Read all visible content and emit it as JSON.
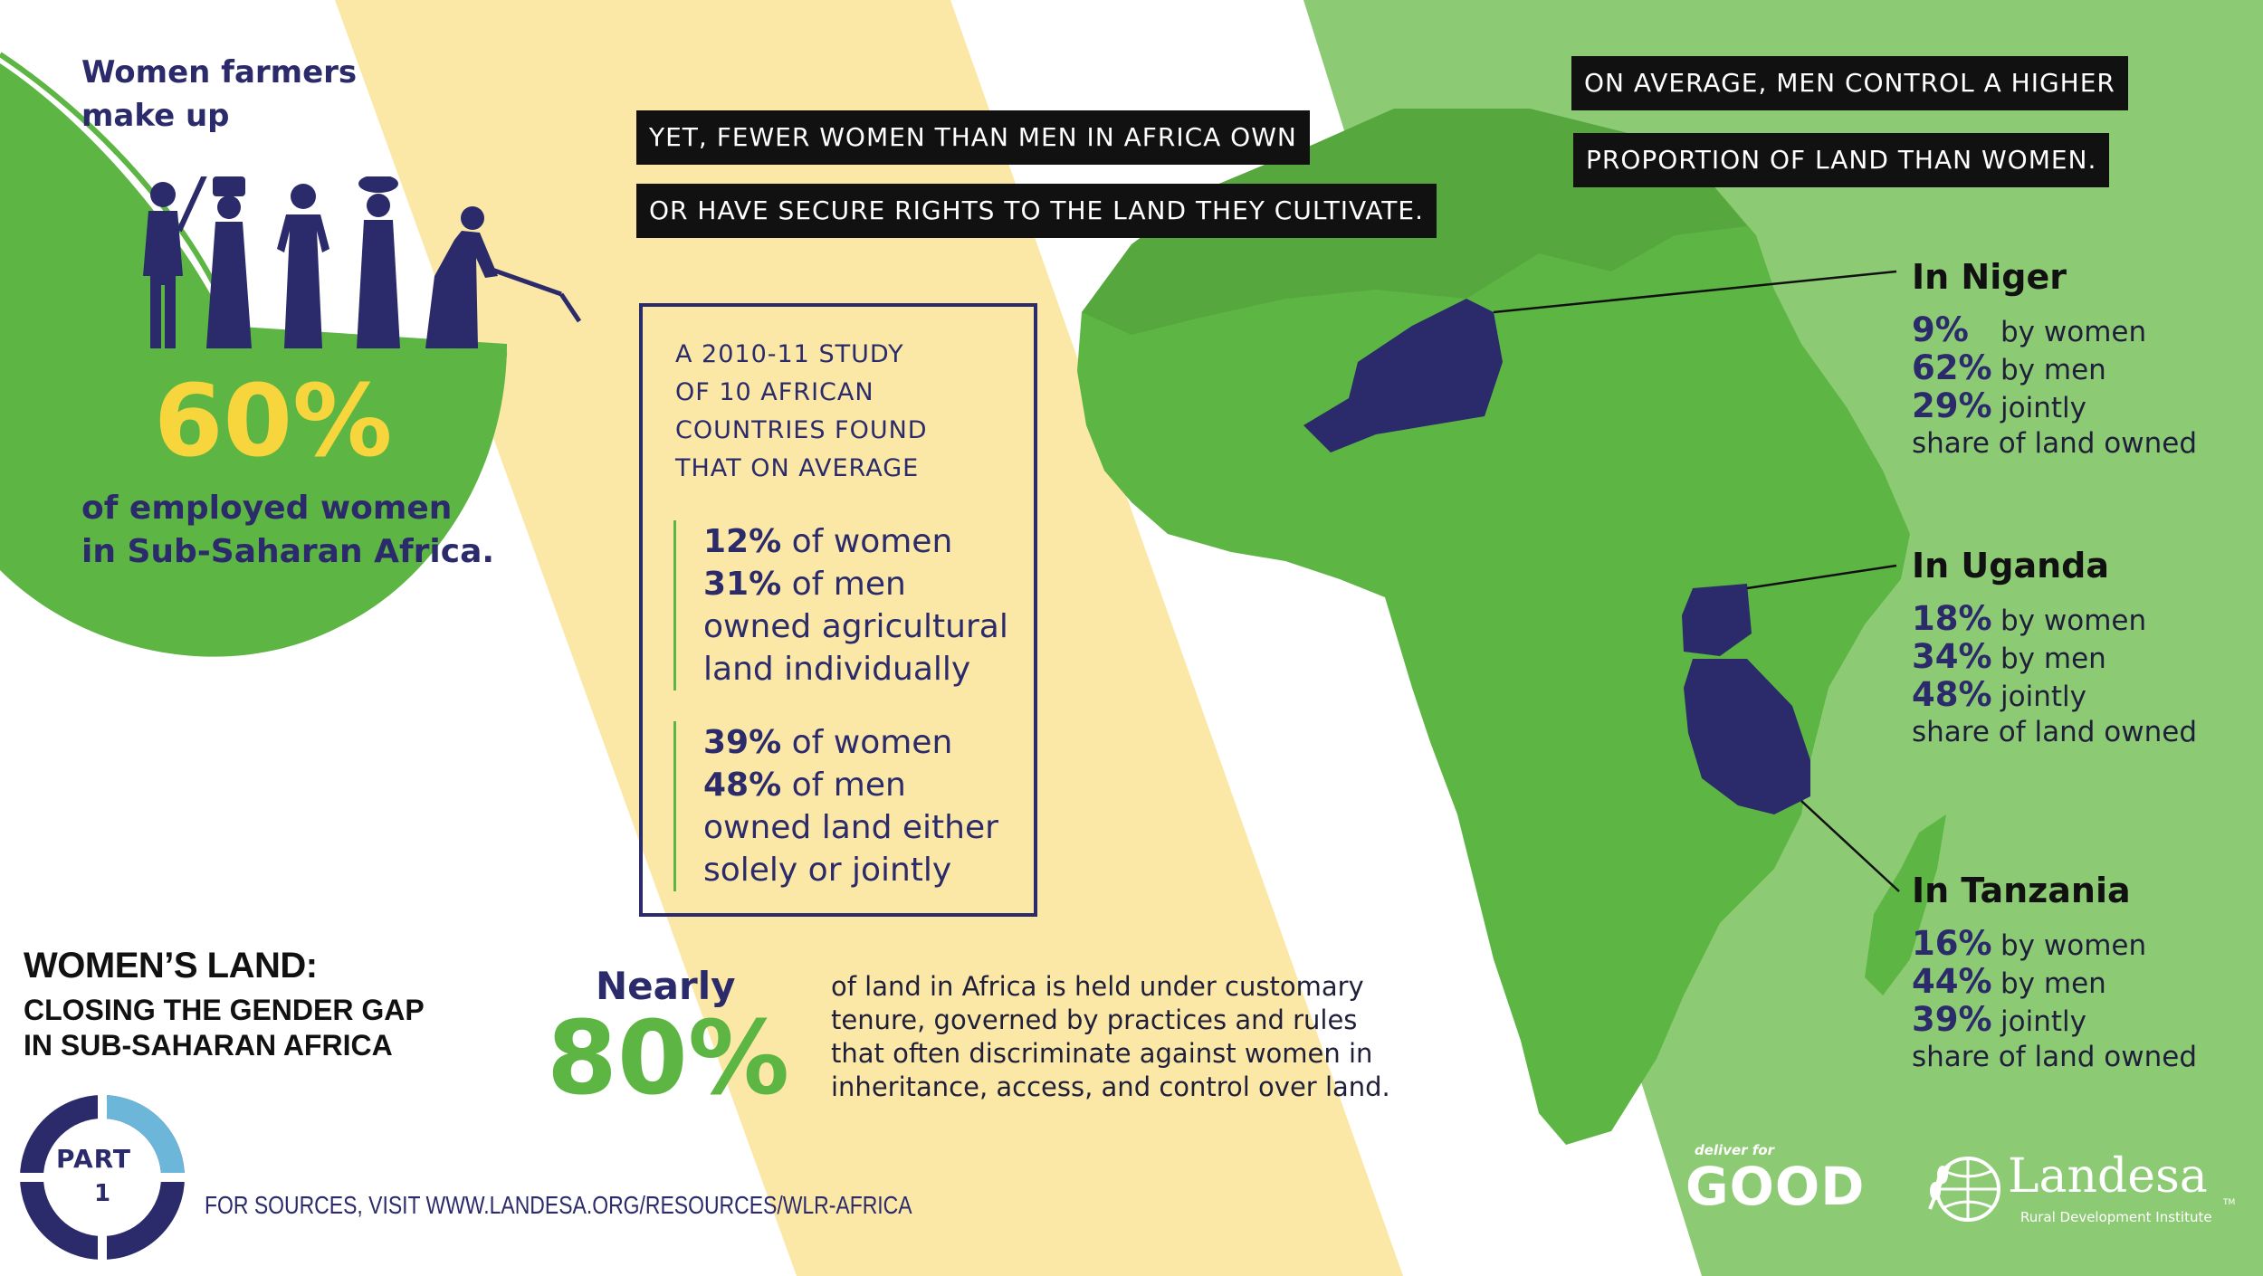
{
  "header": {
    "women_farmers_line1": "Women farmers",
    "women_farmers_line2": "make up",
    "big_pct": "60%",
    "employed_line1": "of employed women",
    "employed_line2": "in Sub-Saharan Africa."
  },
  "headlines": {
    "line1": "YET, FEWER WOMEN THAN MEN IN AFRICA OWN",
    "line2": "OR HAVE SECURE RIGHTS TO THE LAND THEY CULTIVATE.",
    "right1": "ON AVERAGE, MEN CONTROL A HIGHER",
    "right2": "PROPORTION OF LAND THAN WOMEN."
  },
  "study": {
    "intro": [
      "A 2010-11 STUDY",
      "OF 10 AFRICAN",
      "COUNTRIES FOUND",
      "THAT ON AVERAGE"
    ],
    "group1": {
      "women_pct": "12%",
      "women_text": " of women",
      "men_pct": "31%",
      "men_text": " of men",
      "line3": "owned agricultural",
      "line4": "land individually"
    },
    "group2": {
      "women_pct": "39%",
      "women_text": " of women",
      "men_pct": "48%",
      "men_text": " of men",
      "line3": "owned land either",
      "line4": "solely or jointly"
    }
  },
  "customary": {
    "nearly": "Nearly",
    "pct": "80%",
    "lines": [
      "of land in Africa is held under customary",
      "tenure, governed by practices and rules",
      "that often discriminate against women in",
      "inheritance, access, and control over land."
    ]
  },
  "title": {
    "main": "WOMEN’S LAND:",
    "sub1": "CLOSING THE GENDER GAP",
    "sub2": "IN SUB-SAHARAN AFRICA"
  },
  "part": {
    "label": "PART",
    "number": "1"
  },
  "sources": "FOR SOURCES, VISIT WWW.LANDESA.ORG/RESOURCES/WLR-AFRICA",
  "countries": [
    {
      "name": "In Niger",
      "women": "9%",
      "men": "62%",
      "jointly": "29%"
    },
    {
      "name": "In Uganda",
      "women": "18%",
      "men": "34%",
      "jointly": "48%"
    },
    {
      "name": "In Tanzania",
      "women": "16%",
      "men": "44%",
      "jointly": "39%"
    }
  ],
  "labels": {
    "by_women": "by women",
    "by_men": "by men",
    "jointly": "jointly",
    "share": "share of land owned"
  },
  "logos": {
    "deliver_small": "deliver for",
    "good": "GOOD",
    "landesa": "Landesa",
    "tm": "TM",
    "rdi": "Rural Development Institute"
  },
  "colors": {
    "navy": "#2b2a6b",
    "green": "#5db543",
    "light_green": "#8ccb74",
    "yellow_band": "#fbe8a6",
    "accent_yellow": "#f6d63c"
  }
}
